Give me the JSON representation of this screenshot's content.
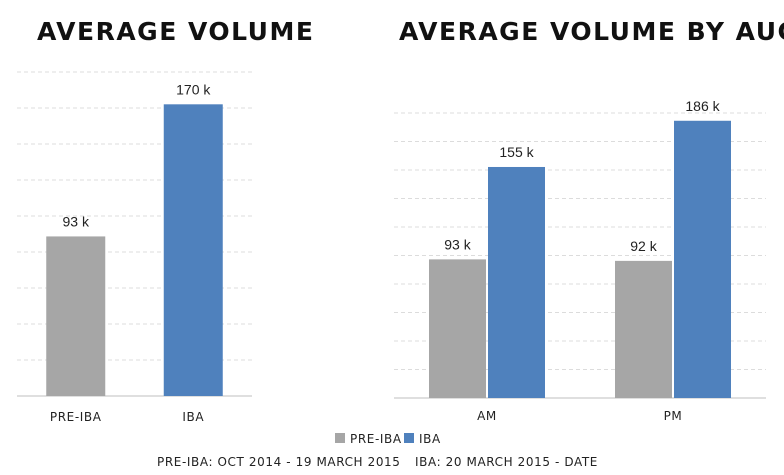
{
  "colors": {
    "pre_iba": "#a6a6a6",
    "iba": "#4f81bd",
    "grid": "#dcdcdc",
    "axis": "#bfbfbf"
  },
  "legend": [
    {
      "label": "PRE-IBA",
      "color": "#a6a6a6"
    },
    {
      "label": "IBA",
      "color": "#4f81bd"
    }
  ],
  "footnotes": {
    "pre_iba": "PRE-IBA: OCT 2014 - 19 MARCH 2015",
    "iba": "IBA: 20 MARCH 2015 - DATE"
  },
  "chart_data": [
    {
      "type": "bar",
      "title": "AVERAGE VOLUME",
      "categories": [
        "PRE-IBA",
        "IBA"
      ],
      "values": [
        93,
        170
      ],
      "colors": [
        "#a6a6a6",
        "#4f81bd"
      ],
      "value_labels": [
        "93 k",
        "170 k"
      ],
      "ylim": [
        0,
        190
      ],
      "grid": true
    },
    {
      "type": "bar",
      "title": "AVERAGE VOLUME BY AUCTION",
      "categories": [
        "AM",
        "PM"
      ],
      "series": [
        {
          "name": "PRE-IBA",
          "values": [
            93,
            92
          ],
          "value_labels": [
            "93 k",
            "92 k"
          ],
          "color": "#a6a6a6"
        },
        {
          "name": "IBA",
          "values": [
            155,
            186
          ],
          "value_labels": [
            "155 k",
            "186 k"
          ],
          "color": "#4f81bd"
        }
      ],
      "ylim": [
        0,
        210
      ],
      "grid": true,
      "legend_position": "bottom"
    }
  ]
}
